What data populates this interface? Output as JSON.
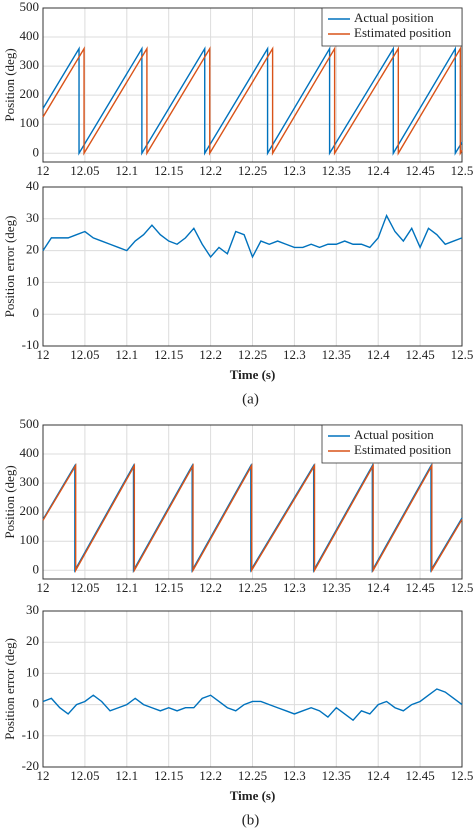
{
  "chart_data": [
    {
      "type": "line",
      "ylabel": "Position (deg)",
      "xlim": [
        12,
        12.5
      ],
      "xticks": [
        12,
        12.05,
        12.1,
        12.15,
        12.2,
        12.25,
        12.3,
        12.35,
        12.4,
        12.45,
        12.5
      ],
      "ylim": [
        -30,
        500
      ],
      "yticks": [
        0,
        100,
        200,
        300,
        400,
        500
      ],
      "grid": true,
      "legend": "upper right",
      "series": [
        {
          "name": "Actual position",
          "color": "#0072bd",
          "x": [
            12,
            12.043,
            12.043,
            12.118,
            12.118,
            12.193,
            12.193,
            12.268,
            12.268,
            12.342,
            12.342,
            12.418,
            12.418,
            12.492,
            12.492,
            12.5
          ],
          "values": [
            154,
            360,
            0,
            360,
            0,
            360,
            0,
            360,
            0,
            360,
            0,
            360,
            0,
            360,
            0,
            38
          ]
        },
        {
          "name": "Estimated position",
          "color": "#d95319",
          "x": [
            12,
            12.049,
            12.049,
            12.124,
            12.124,
            12.199,
            12.199,
            12.274,
            12.274,
            12.348,
            12.348,
            12.424,
            12.424,
            12.498,
            12.498,
            12.5
          ],
          "values": [
            125,
            360,
            0,
            360,
            0,
            360,
            0,
            360,
            0,
            360,
            0,
            360,
            0,
            360,
            0,
            10
          ]
        }
      ]
    },
    {
      "type": "line",
      "ylabel": "Position error (deg)",
      "xlabel": "Time (s)",
      "caption": "(a)",
      "xlim": [
        12,
        12.5
      ],
      "xticks": [
        12,
        12.05,
        12.1,
        12.15,
        12.2,
        12.25,
        12.3,
        12.35,
        12.4,
        12.45,
        12.5
      ],
      "ylim": [
        -10,
        40
      ],
      "yticks": [
        -10,
        0,
        10,
        20,
        30,
        40
      ],
      "grid": true,
      "x": [
        12,
        12.01,
        12.02,
        12.03,
        12.04,
        12.05,
        12.06,
        12.07,
        12.08,
        12.09,
        12.1,
        12.11,
        12.12,
        12.13,
        12.14,
        12.15,
        12.16,
        12.17,
        12.18,
        12.19,
        12.2,
        12.21,
        12.22,
        12.23,
        12.24,
        12.25,
        12.26,
        12.27,
        12.28,
        12.29,
        12.3,
        12.31,
        12.32,
        12.33,
        12.34,
        12.35,
        12.36,
        12.37,
        12.38,
        12.39,
        12.4,
        12.41,
        12.42,
        12.43,
        12.44,
        12.45,
        12.46,
        12.47,
        12.48,
        12.49,
        12.5
      ],
      "series": [
        {
          "color": "#0072bd",
          "values": [
            20,
            24,
            24,
            24,
            25,
            26,
            24,
            23,
            22,
            21,
            20,
            23,
            25,
            28,
            25,
            23,
            22,
            24,
            27,
            22,
            18,
            21,
            19,
            26,
            25,
            18,
            23,
            22,
            23,
            22,
            21,
            21,
            22,
            21,
            22,
            22,
            23,
            22,
            22,
            21,
            24,
            31,
            26,
            23,
            27,
            21,
            27,
            25,
            22,
            23,
            24
          ]
        }
      ]
    },
    {
      "type": "line",
      "ylabel": "Position (deg)",
      "xlim": [
        12,
        12.5
      ],
      "xticks": [
        12,
        12.05,
        12.1,
        12.15,
        12.2,
        12.25,
        12.3,
        12.35,
        12.4,
        12.45,
        12.5
      ],
      "ylim": [
        -30,
        500
      ],
      "yticks": [
        0,
        100,
        200,
        300,
        400,
        500
      ],
      "grid": true,
      "legend": "upper right",
      "series": [
        {
          "name": "Actual position",
          "color": "#0072bd",
          "x": [
            12,
            12.038,
            12.038,
            12.108,
            12.108,
            12.178,
            12.178,
            12.248,
            12.248,
            12.323,
            12.323,
            12.393,
            12.393,
            12.463,
            12.463,
            12.5
          ],
          "values": [
            175,
            360,
            0,
            360,
            0,
            360,
            0,
            360,
            0,
            360,
            0,
            360,
            0,
            360,
            0,
            180
          ]
        },
        {
          "name": "Estimated position",
          "color": "#d95319",
          "x": [
            12,
            12.039,
            12.039,
            12.109,
            12.109,
            12.179,
            12.179,
            12.249,
            12.249,
            12.324,
            12.324,
            12.394,
            12.394,
            12.464,
            12.464,
            12.5
          ],
          "values": [
            172,
            360,
            0,
            360,
            0,
            360,
            0,
            360,
            0,
            360,
            0,
            360,
            0,
            360,
            0,
            175
          ]
        }
      ]
    },
    {
      "type": "line",
      "ylabel": "Position error (deg)",
      "xlabel": "Time (s)",
      "caption": "(b)",
      "xlim": [
        12,
        12.5
      ],
      "xticks": [
        12,
        12.05,
        12.1,
        12.15,
        12.2,
        12.25,
        12.3,
        12.35,
        12.4,
        12.45,
        12.5
      ],
      "ylim": [
        -20,
        30
      ],
      "yticks": [
        -20,
        -10,
        0,
        10,
        20,
        30
      ],
      "grid": true,
      "x": [
        12,
        12.01,
        12.02,
        12.03,
        12.04,
        12.05,
        12.06,
        12.07,
        12.08,
        12.09,
        12.1,
        12.11,
        12.12,
        12.13,
        12.14,
        12.15,
        12.16,
        12.17,
        12.18,
        12.19,
        12.2,
        12.21,
        12.22,
        12.23,
        12.24,
        12.25,
        12.26,
        12.27,
        12.28,
        12.29,
        12.3,
        12.31,
        12.32,
        12.33,
        12.34,
        12.35,
        12.36,
        12.37,
        12.38,
        12.39,
        12.4,
        12.41,
        12.42,
        12.43,
        12.44,
        12.45,
        12.46,
        12.47,
        12.48,
        12.49,
        12.5
      ],
      "series": [
        {
          "color": "#0072bd",
          "values": [
            1,
            2,
            -1,
            -3,
            0,
            1,
            3,
            1,
            -2,
            -1,
            0,
            2,
            0,
            -1,
            -2,
            -1,
            -2,
            -1,
            -1,
            2,
            3,
            1,
            -1,
            -2,
            0,
            1,
            1,
            0,
            -1,
            -2,
            -3,
            -2,
            -1,
            -2,
            -4,
            -1,
            -3,
            -5,
            -2,
            -3,
            0,
            1,
            -1,
            -2,
            0,
            1,
            3,
            5,
            4,
            2,
            0
          ]
        }
      ]
    }
  ]
}
